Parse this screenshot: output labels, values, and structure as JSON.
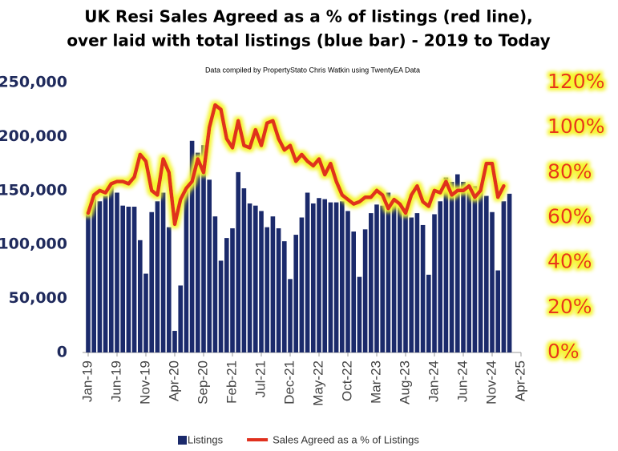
{
  "chart_data": {
    "type": "bar-line",
    "title": [
      "UK Resi Sales Agreed as a % of listings (red line),",
      "over laid with total listings (blue bar) - 2019 to Today"
    ],
    "subtitle": "Data compiled by PropertyStato Chris Watkin using TwentyEA Data",
    "categories": [
      "Jan-19",
      null,
      null,
      null,
      null,
      "Jun-19",
      null,
      null,
      null,
      null,
      "Nov-19",
      null,
      null,
      null,
      null,
      "Apr-20",
      null,
      null,
      null,
      null,
      "Sep-20",
      null,
      null,
      null,
      null,
      "Feb-21",
      null,
      null,
      null,
      null,
      "Jul-21",
      null,
      null,
      null,
      null,
      "Dec-21",
      null,
      null,
      null,
      null,
      "May-22",
      null,
      null,
      null,
      null,
      "Oct-22",
      null,
      null,
      null,
      null,
      "Mar-23",
      null,
      null,
      null,
      null,
      "Aug-23",
      null,
      null,
      null,
      null,
      "Jan-24",
      null,
      null,
      null,
      null,
      "Jun-24",
      null,
      null,
      null,
      null,
      "Nov-24",
      null,
      null,
      null,
      null,
      "Apr-25"
    ],
    "series": [
      {
        "name": "Listings",
        "color": "#1b2a6b",
        "type": "bar",
        "values": [
          130000,
          147000,
          140000,
          145000,
          157000,
          148000,
          136000,
          135000,
          135000,
          104000,
          73000,
          130000,
          140000,
          148000,
          116000,
          20000,
          62000,
          150000,
          196000,
          185000,
          192000,
          160000,
          126000,
          85000,
          106000,
          115000,
          167000,
          152000,
          138000,
          136000,
          131000,
          116000,
          126000,
          115000,
          103000,
          68000,
          109000,
          125000,
          148000,
          138000,
          143000,
          142000,
          139000,
          139000,
          140000,
          131000,
          112000,
          70000,
          114000,
          129000,
          137000,
          136000,
          148000,
          140000,
          134000,
          133000,
          125000,
          129000,
          118000,
          72000,
          128000,
          140000,
          162000,
          158000,
          165000,
          158000,
          154000,
          154000,
          150000,
          145000,
          130000,
          76000,
          140000,
          147000,
          null,
          null
        ]
      },
      {
        "name": "Sales Agreed as a % of Listings",
        "color": "#e0301e",
        "type": "line",
        "axis": "y2",
        "values": [
          62,
          70,
          72,
          71,
          75,
          76,
          76,
          75,
          78,
          88,
          85,
          72,
          70,
          86,
          80,
          57,
          68,
          73,
          76,
          86,
          80,
          100,
          110,
          108,
          95,
          91,
          103,
          92,
          91,
          99,
          92,
          102,
          103,
          95,
          90,
          92,
          85,
          88,
          85,
          83,
          86,
          79,
          84,
          76,
          70,
          68,
          66,
          67,
          69,
          69,
          72,
          70,
          64,
          68,
          66,
          62,
          70,
          74,
          67,
          65,
          72,
          71,
          76,
          70,
          72,
          72,
          74,
          69,
          72,
          84,
          84,
          69,
          74,
          null,
          null,
          null
        ]
      }
    ],
    "ylim": [
      0,
      250000
    ],
    "yticks": [
      0,
      {
        "value": 50000,
        "label": "50,000"
      },
      {
        "value": 100000,
        "label": "100,000"
      },
      {
        "value": 150000,
        "label": "150,000"
      },
      {
        "value": 200000,
        "label": "200,000"
      },
      {
        "value": 250000,
        "label": "250,000"
      }
    ],
    "y2lim": [
      0,
      120
    ],
    "y2ticks": [
      {
        "value": 0,
        "label": "0%"
      },
      {
        "value": 20,
        "label": "20%"
      },
      {
        "value": 40,
        "label": "40%"
      },
      {
        "value": 60,
        "label": "60%"
      },
      {
        "value": 80,
        "label": "80%"
      },
      {
        "value": 100,
        "label": "100%"
      },
      {
        "value": 120,
        "label": "120%"
      }
    ],
    "grid": false,
    "legend": "bottom"
  }
}
